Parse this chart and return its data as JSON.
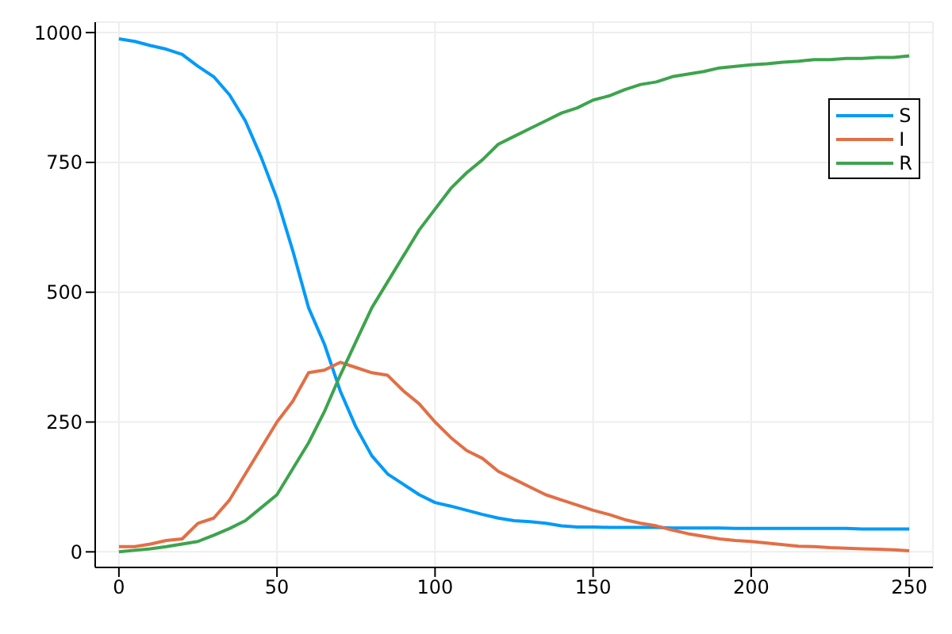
{
  "chart_data": {
    "type": "line",
    "x": [
      0,
      5,
      10,
      15,
      20,
      25,
      30,
      35,
      40,
      45,
      50,
      55,
      60,
      65,
      70,
      75,
      80,
      85,
      90,
      95,
      100,
      105,
      110,
      115,
      120,
      125,
      130,
      135,
      140,
      145,
      150,
      155,
      160,
      165,
      170,
      175,
      180,
      185,
      190,
      195,
      200,
      205,
      210,
      215,
      220,
      225,
      230,
      235,
      240,
      245,
      250
    ],
    "series": [
      {
        "name": "S",
        "color": "#009af9",
        "values": [
          988,
          983,
          975,
          968,
          958,
          935,
          915,
          880,
          830,
          760,
          680,
          580,
          470,
          400,
          310,
          240,
          185,
          150,
          130,
          110,
          95,
          88,
          80,
          72,
          65,
          60,
          58,
          55,
          50,
          48,
          48,
          47,
          47,
          47,
          47,
          46,
          46,
          46,
          46,
          45,
          45,
          45,
          45,
          45,
          45,
          45,
          45,
          44,
          44,
          44,
          44
        ]
      },
      {
        "name": "I",
        "color": "#e26f46",
        "values": [
          10,
          10,
          15,
          22,
          25,
          55,
          65,
          100,
          150,
          200,
          250,
          290,
          345,
          350,
          365,
          355,
          345,
          340,
          310,
          285,
          250,
          220,
          195,
          180,
          155,
          140,
          125,
          110,
          100,
          90,
          80,
          72,
          62,
          55,
          50,
          42,
          35,
          30,
          25,
          22,
          20,
          17,
          14,
          11,
          10,
          8,
          7,
          6,
          5,
          4,
          2
        ]
      },
      {
        "name": "R",
        "color": "#3da44d",
        "values": [
          0,
          3,
          6,
          10,
          15,
          20,
          32,
          45,
          60,
          85,
          110,
          160,
          210,
          270,
          340,
          405,
          470,
          520,
          570,
          620,
          660,
          700,
          730,
          755,
          785,
          800,
          815,
          830,
          845,
          855,
          870,
          878,
          890,
          900,
          905,
          915,
          920,
          925,
          932,
          935,
          938,
          940,
          943,
          945,
          948,
          948,
          950,
          950,
          952,
          952,
          955
        ]
      }
    ],
    "xlim": [
      -7.5,
      257.5
    ],
    "ylim": [
      -30,
      1020
    ],
    "xticks": [
      0,
      50,
      100,
      150,
      200,
      250
    ],
    "yticks": [
      0,
      250,
      500,
      750,
      1000
    ],
    "grid": true,
    "legend": "top right",
    "marker": "none",
    "line_style": "solid"
  }
}
